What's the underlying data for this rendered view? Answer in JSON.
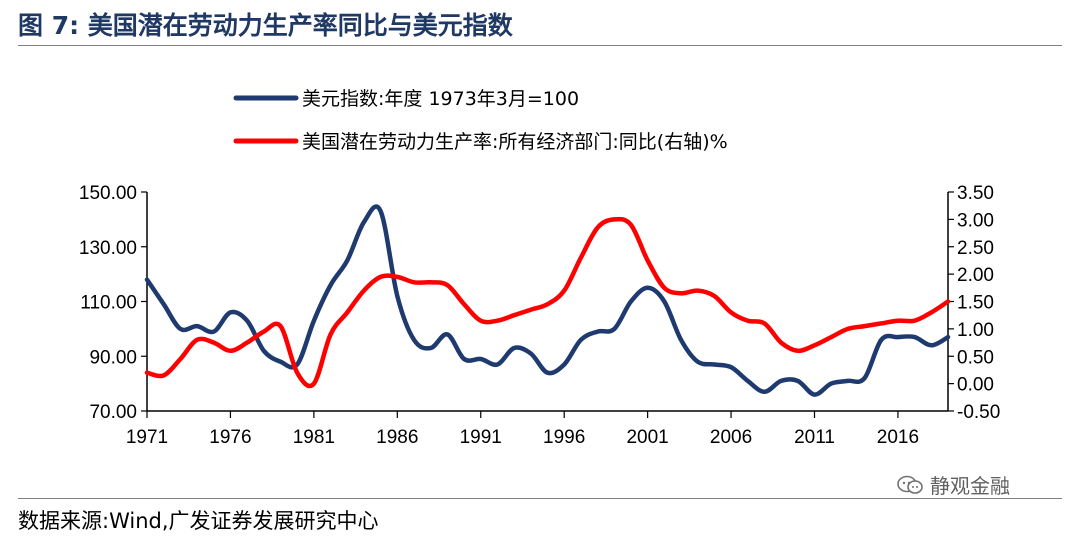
{
  "figure": {
    "title": "图 7:  美国潜在劳动力生产率同比与美元指数",
    "source": "数据来源:Wind,广发证券发展研究中心",
    "watermark": "静观金融"
  },
  "colors": {
    "series_usd": "#1f3a6e",
    "series_prod": "#ff0000",
    "axis": "#000000",
    "rule": "#808080"
  },
  "chart_data": {
    "type": "line",
    "title": "",
    "xlabel": "",
    "ylabel": "",
    "xlim": [
      1971,
      2019
    ],
    "x_ticks": [
      1971,
      1976,
      1981,
      1986,
      1991,
      1996,
      2001,
      2006,
      2011,
      2016
    ],
    "y_left": {
      "range": [
        70,
        150
      ],
      "ticks": [
        "150.00",
        "130.00",
        "110.00",
        "90.00",
        "70.00"
      ]
    },
    "y_right": {
      "range": [
        -0.5,
        3.5
      ],
      "ticks": [
        "3.50",
        "3.00",
        "2.50",
        "2.00",
        "1.50",
        "1.00",
        "0.50",
        "0.00",
        "-0.50"
      ]
    },
    "legend_position": "top-left",
    "grid": false,
    "series": [
      {
        "name": "美元指数:年度 1973年3月=100",
        "axis": "left",
        "points": [
          [
            1971,
            118
          ],
          [
            1972,
            109
          ],
          [
            1973,
            100
          ],
          [
            1974,
            101
          ],
          [
            1975,
            99
          ],
          [
            1976,
            106
          ],
          [
            1977,
            103
          ],
          [
            1978,
            92
          ],
          [
            1979,
            88
          ],
          [
            1980,
            87
          ],
          [
            1981,
            103
          ],
          [
            1982,
            116
          ],
          [
            1983,
            125
          ],
          [
            1984,
            139
          ],
          [
            1985,
            143
          ],
          [
            1986,
            112
          ],
          [
            1987,
            96
          ],
          [
            1988,
            93
          ],
          [
            1989,
            98
          ],
          [
            1990,
            89
          ],
          [
            1991,
            89
          ],
          [
            1992,
            87
          ],
          [
            1993,
            93
          ],
          [
            1994,
            91
          ],
          [
            1995,
            84
          ],
          [
            1996,
            87
          ],
          [
            1997,
            96
          ],
          [
            1998,
            99
          ],
          [
            1999,
            100
          ],
          [
            2000,
            110
          ],
          [
            2001,
            115
          ],
          [
            2002,
            110
          ],
          [
            2003,
            96
          ],
          [
            2004,
            88
          ],
          [
            2005,
            87
          ],
          [
            2006,
            86
          ],
          [
            2007,
            81
          ],
          [
            2008,
            77
          ],
          [
            2009,
            81
          ],
          [
            2010,
            81
          ],
          [
            2011,
            76
          ],
          [
            2012,
            80
          ],
          [
            2013,
            81
          ],
          [
            2014,
            82
          ],
          [
            2015,
            96
          ],
          [
            2016,
            97
          ],
          [
            2017,
            97
          ],
          [
            2018,
            94
          ],
          [
            2019,
            97
          ]
        ]
      },
      {
        "name": "美国潜在劳动力生产率:所有经济部门:同比(右轴)%",
        "axis": "right",
        "points": [
          [
            1971,
            0.2
          ],
          [
            1972,
            0.15
          ],
          [
            1973,
            0.45
          ],
          [
            1974,
            0.8
          ],
          [
            1975,
            0.75
          ],
          [
            1976,
            0.6
          ],
          [
            1977,
            0.75
          ],
          [
            1978,
            0.95
          ],
          [
            1979,
            1.05
          ],
          [
            1980,
            0.2
          ],
          [
            1981,
            0.0
          ],
          [
            1982,
            0.9
          ],
          [
            1983,
            1.3
          ],
          [
            1984,
            1.7
          ],
          [
            1985,
            1.95
          ],
          [
            1986,
            1.95
          ],
          [
            1987,
            1.85
          ],
          [
            1988,
            1.85
          ],
          [
            1989,
            1.8
          ],
          [
            1990,
            1.45
          ],
          [
            1991,
            1.15
          ],
          [
            1992,
            1.15
          ],
          [
            1993,
            1.25
          ],
          [
            1994,
            1.35
          ],
          [
            1995,
            1.45
          ],
          [
            1996,
            1.7
          ],
          [
            1997,
            2.3
          ],
          [
            1998,
            2.85
          ],
          [
            1999,
            3.0
          ],
          [
            2000,
            2.9
          ],
          [
            2001,
            2.25
          ],
          [
            2002,
            1.75
          ],
          [
            2003,
            1.65
          ],
          [
            2004,
            1.7
          ],
          [
            2005,
            1.6
          ],
          [
            2006,
            1.3
          ],
          [
            2007,
            1.15
          ],
          [
            2008,
            1.1
          ],
          [
            2009,
            0.75
          ],
          [
            2010,
            0.6
          ],
          [
            2011,
            0.7
          ],
          [
            2012,
            0.85
          ],
          [
            2013,
            1.0
          ],
          [
            2014,
            1.05
          ],
          [
            2015,
            1.1
          ],
          [
            2016,
            1.15
          ],
          [
            2017,
            1.15
          ],
          [
            2018,
            1.3
          ],
          [
            2019,
            1.5
          ]
        ]
      }
    ]
  }
}
